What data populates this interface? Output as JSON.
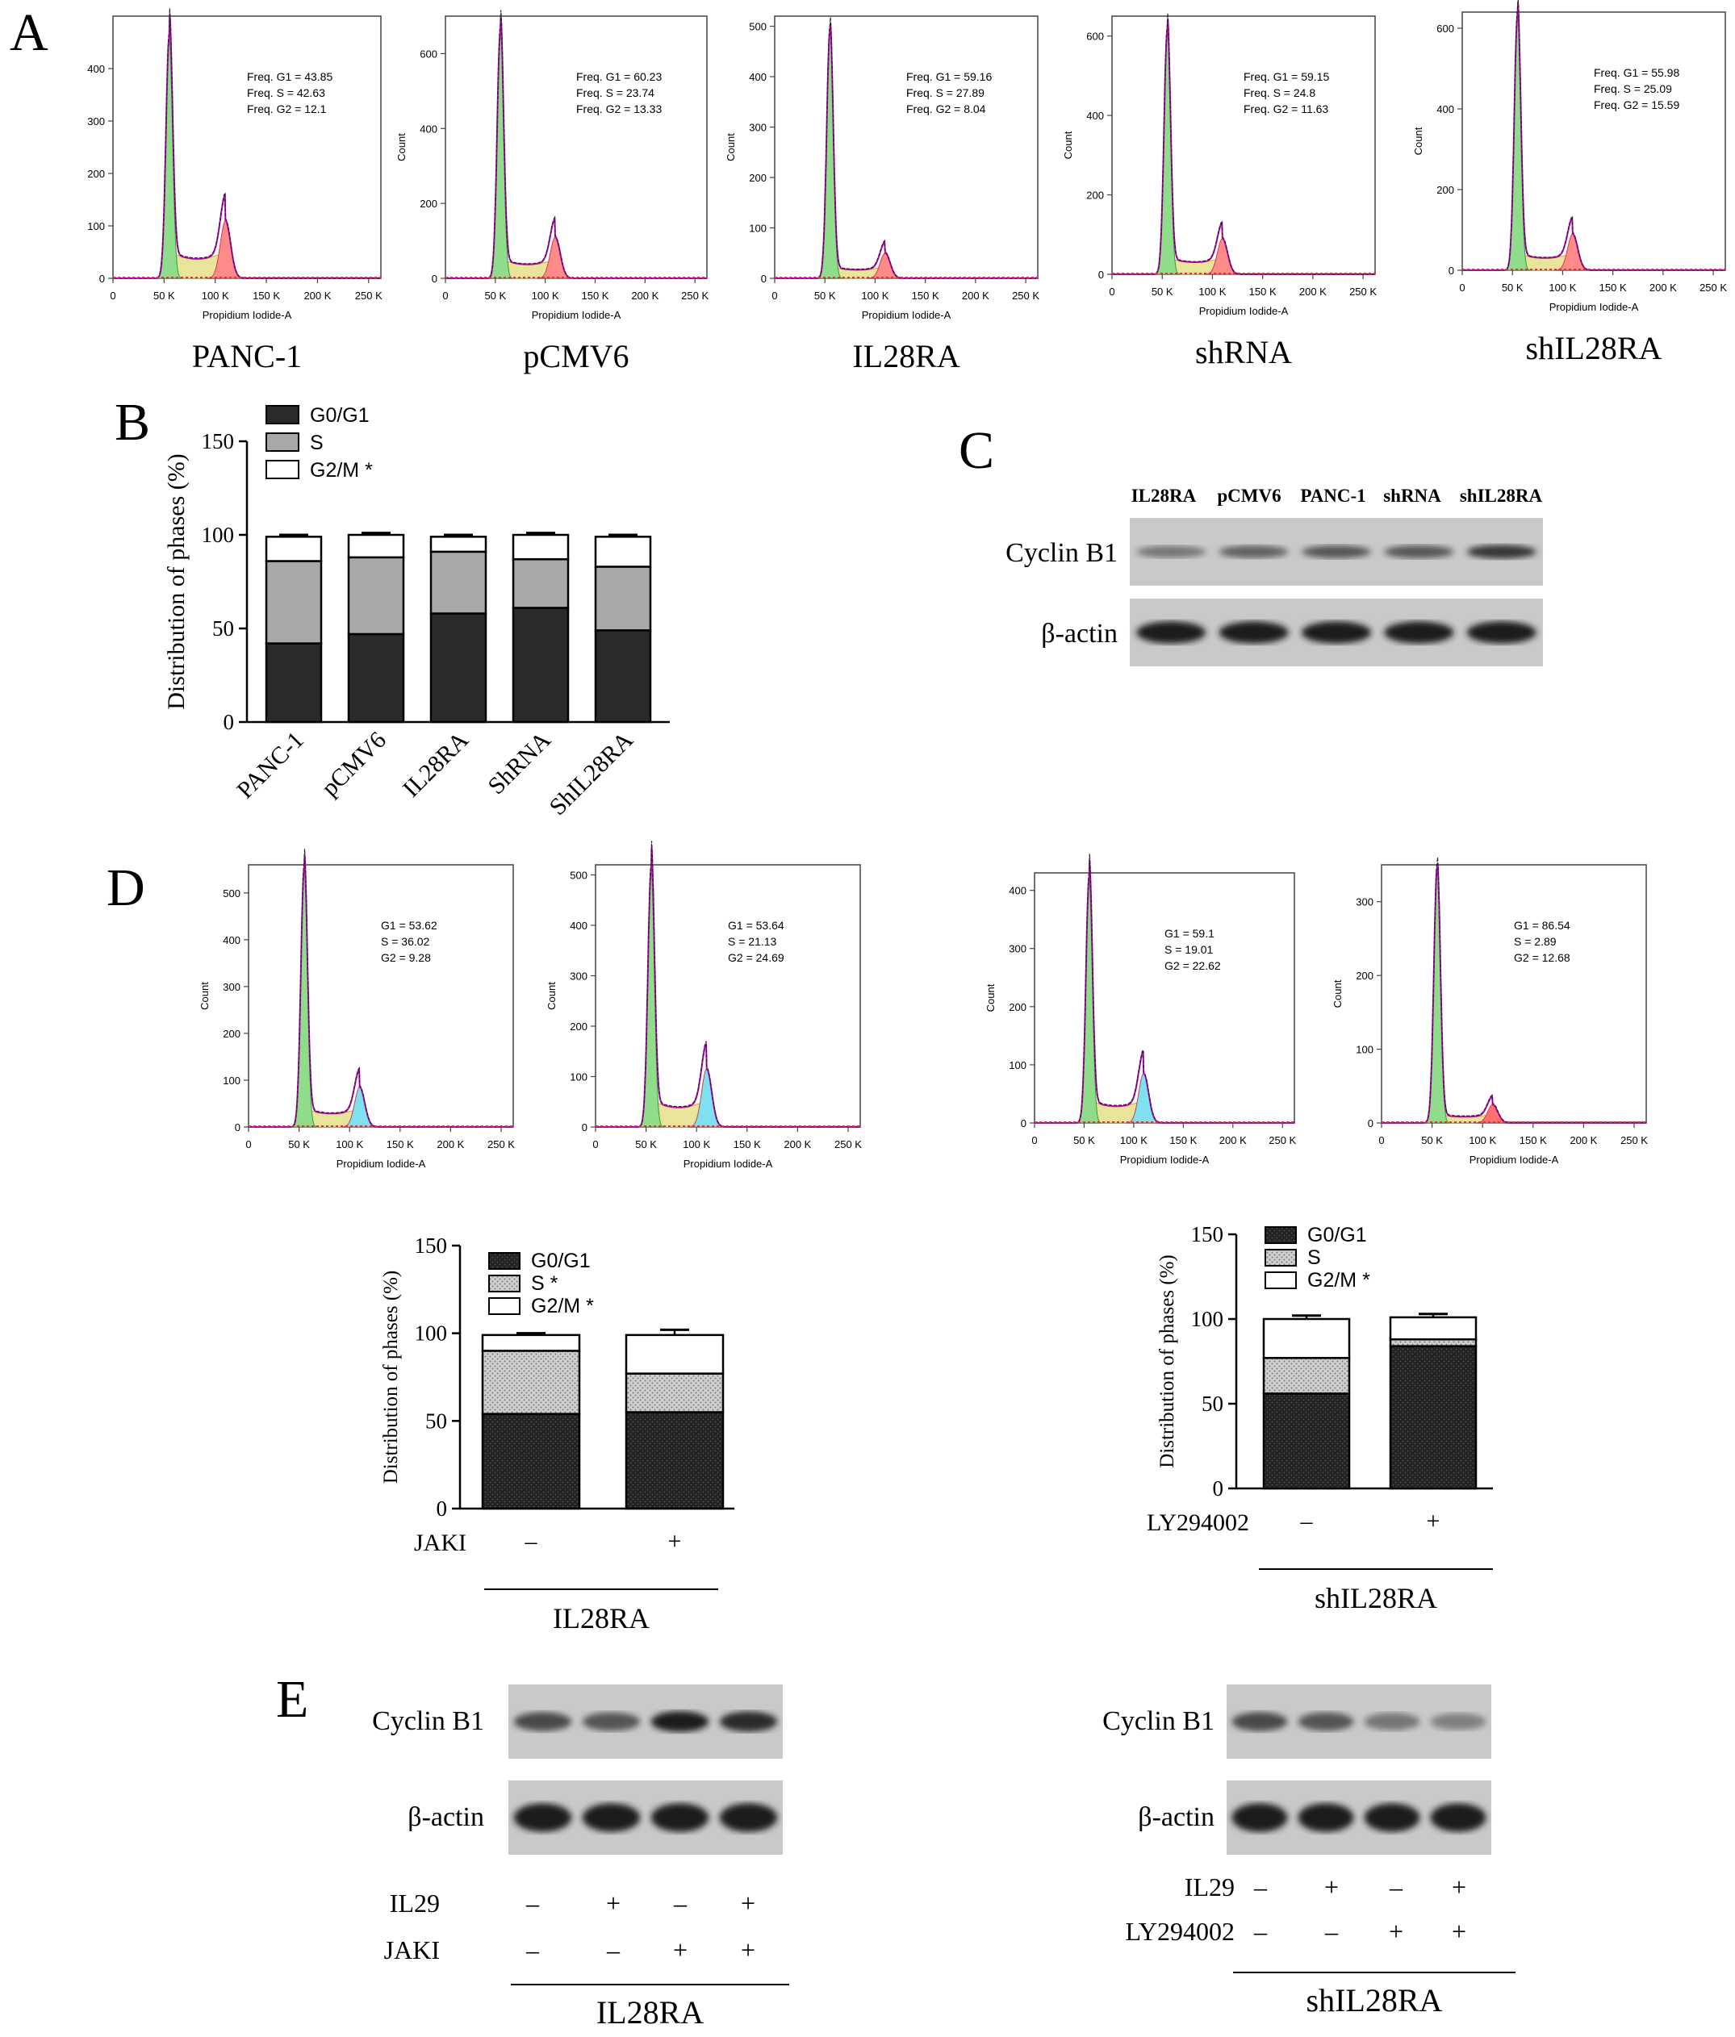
{
  "panel_letters": [
    "A",
    "B",
    "C",
    "D",
    "E"
  ],
  "panel_a": {
    "x_label": "Propidium Iodide-A",
    "y_label": "Count",
    "x_ticks": [
      "0",
      "50 K",
      "100 K",
      "150 K",
      "200 K",
      "250 K"
    ],
    "histograms": [
      {
        "caption": "PANC-1",
        "ymax": 500,
        "y_ticks": [
          "0",
          "100",
          "200",
          "300",
          "400"
        ],
        "peak": 460,
        "g2": 110,
        "show_count": false,
        "stats": [
          "Freq. G1 = 43.85",
          "Freq. S = 42.63",
          "Freq. G2 = 12.1"
        ]
      },
      {
        "caption": "pCMV6",
        "ymax": 700,
        "y_ticks": [
          "0",
          "200",
          "400",
          "600"
        ],
        "peak": 660,
        "g2": 110,
        "show_count": true,
        "stats": [
          "Freq. G1 = 60.23",
          "Freq. S = 23.74",
          "Freq. G2 = 13.33"
        ]
      },
      {
        "caption": "IL28RA",
        "ymax": 520,
        "y_ticks": [
          "0",
          "100",
          "200",
          "300",
          "400",
          "500"
        ],
        "peak": 490,
        "g2": 50,
        "show_count": true,
        "stats": [
          "Freq. G1 = 59.16",
          "Freq. S = 27.89",
          "Freq. G2 = 8.04"
        ]
      },
      {
        "caption": "shRNA",
        "ymax": 650,
        "y_ticks": [
          "0",
          "200",
          "400",
          "600"
        ],
        "peak": 610,
        "g2": 90,
        "show_count": true,
        "stats": [
          "Freq. G1 = 59.15",
          "Freq. S = 24.8",
          "Freq. G2 = 11.63"
        ]
      },
      {
        "caption": "shIL28RA",
        "ymax": 640,
        "y_ticks": [
          "0",
          "200",
          "400",
          "600"
        ],
        "peak": 630,
        "g2": 90,
        "show_count": true,
        "stats": [
          "Freq. G1 = 55.98",
          "Freq. S = 25.09",
          "Freq. G2 = 15.59"
        ]
      }
    ]
  },
  "panel_d_histograms": {
    "x_label": "Propidium Iodide-A",
    "y_label": "Count",
    "x_ticks": [
      "0",
      "50 K",
      "100 K",
      "150 K",
      "200 K",
      "250 K"
    ],
    "histograms": [
      {
        "ymax": 560,
        "y_ticks": [
          "0",
          "100",
          "200",
          "300",
          "400",
          "500"
        ],
        "peak": 550,
        "g2": 85,
        "g2color": "#7fe0f0",
        "stats": [
          "G1 = 53.62",
          "S = 36.02",
          "G2 = 9.28"
        ]
      },
      {
        "ymax": 520,
        "y_ticks": [
          "0",
          "100",
          "200",
          "300",
          "400",
          "500"
        ],
        "peak": 510,
        "g2": 115,
        "g2color": "#7fe0f0",
        "stats": [
          "G1 = 53.64",
          "S = 21.13",
          "G2 = 24.69"
        ]
      },
      {
        "ymax": 430,
        "y_ticks": [
          "0",
          "100",
          "200",
          "300",
          "400"
        ],
        "peak": 420,
        "g2": 85,
        "g2color": "#7fe0f0",
        "stats": [
          "G1 = 59.1",
          "S = 19.01",
          "G2 = 22.62"
        ]
      },
      {
        "ymax": 350,
        "y_ticks": [
          "0",
          "100",
          "200",
          "300"
        ],
        "peak": 345,
        "g2": 25,
        "g2color": "#ff7070",
        "stats": [
          "G1 = 86.54",
          "S = 2.89",
          "G2 = 12.68"
        ]
      }
    ]
  },
  "chart_data": [
    {
      "type": "bar",
      "stacked": true,
      "panel": "B",
      "categories": [
        "PANC-1",
        "pCMV6",
        "IL28RA",
        "ShRNA",
        "ShIL28RA"
      ],
      "series": [
        {
          "name": "G0/G1",
          "values": [
            42,
            47,
            58,
            61,
            49
          ],
          "errors": [
            0,
            3,
            3,
            1,
            3
          ],
          "color": "#2a2a2a"
        },
        {
          "name": "S",
          "values": [
            44,
            41,
            33,
            26,
            34
          ],
          "errors": [
            1,
            2,
            3,
            1,
            3
          ],
          "color": "#a8a8a8"
        },
        {
          "name": "G2/M",
          "values": [
            13,
            12,
            8,
            13,
            16
          ],
          "errors": [
            1,
            1,
            1,
            1,
            1
          ],
          "color": "#ffffff"
        }
      ],
      "legend": [
        "G0/G1",
        "S",
        "G2/M *"
      ],
      "ylabel": "Distribution of phases (%)",
      "y_ticks": [
        "0",
        "50",
        "100",
        "150"
      ],
      "ylim": [
        0,
        150
      ]
    },
    {
      "type": "bar",
      "stacked": true,
      "panel": "D-left",
      "categories": [
        "–",
        "+"
      ],
      "series": [
        {
          "name": "G0/G1",
          "values": [
            54,
            55
          ],
          "errors": [
            1,
            2
          ],
          "color": "#2a2a2a"
        },
        {
          "name": "S",
          "values": [
            36,
            22
          ],
          "errors": [
            1,
            2
          ],
          "color": "#b5b5b5"
        },
        {
          "name": "G2/M",
          "values": [
            9,
            22
          ],
          "errors": [
            1,
            3
          ],
          "color": "#ffffff"
        }
      ],
      "legend": [
        "G0/G1",
        "S *",
        "G2/M *"
      ],
      "ylabel": "Distribution of phases (%)",
      "y_ticks": [
        "0",
        "50",
        "100",
        "150"
      ],
      "ylim": [
        0,
        150
      ],
      "treatment_label": "JAKI",
      "group_label": "IL28RA"
    },
    {
      "type": "bar",
      "stacked": true,
      "panel": "D-right",
      "categories": [
        "–",
        "+"
      ],
      "series": [
        {
          "name": "G0/G1",
          "values": [
            56,
            84
          ],
          "errors": [
            2,
            3
          ],
          "color": "#2a2a2a"
        },
        {
          "name": "S",
          "values": [
            21,
            4
          ],
          "errors": [
            2,
            3
          ],
          "color": "#b5b5b5"
        },
        {
          "name": "G2/M",
          "values": [
            23,
            13
          ],
          "errors": [
            2,
            2
          ],
          "color": "#ffffff"
        }
      ],
      "legend": [
        "G0/G1",
        "S",
        "G2/M *"
      ],
      "ylabel": "Distribution of phases (%)",
      "y_ticks": [
        "0",
        "50",
        "100",
        "150"
      ],
      "ylim": [
        0,
        150
      ],
      "treatment_label": "LY294002",
      "group_label": "shIL28RA"
    }
  ],
  "panel_c": {
    "lane_labels": [
      "IL28RA",
      "pCMV6",
      "PANC-1",
      "shRNA",
      "shIL28RA"
    ],
    "rows": [
      {
        "label": "Cyclin B1",
        "band_intensity": [
          0.55,
          0.65,
          0.7,
          0.7,
          0.85
        ]
      },
      {
        "label": "β-actin",
        "band_intensity": [
          0.95,
          0.95,
          0.95,
          0.95,
          0.95
        ]
      }
    ]
  },
  "panel_e": {
    "left": {
      "rows": [
        {
          "label": "Cyclin B1",
          "band_intensity": [
            0.75,
            0.7,
            0.95,
            0.9
          ]
        },
        {
          "label": "β-actin",
          "band_intensity": [
            0.95,
            0.95,
            0.97,
            0.97
          ]
        }
      ],
      "treatments": [
        {
          "label": "IL29",
          "signs": [
            "–",
            "+",
            "–",
            "+"
          ]
        },
        {
          "label": "JAKI",
          "signs": [
            "–",
            "–",
            "+",
            "+"
          ]
        }
      ],
      "group_label": "IL28RA"
    },
    "right": {
      "rows": [
        {
          "label": "Cyclin B1",
          "band_intensity": [
            0.75,
            0.7,
            0.55,
            0.5
          ]
        },
        {
          "label": "β-actin",
          "band_intensity": [
            0.97,
            0.97,
            0.95,
            0.95
          ]
        }
      ],
      "treatments": [
        {
          "label": "IL29",
          "signs": [
            "–",
            "+",
            "–",
            "+"
          ]
        },
        {
          "label": "LY294002",
          "signs": [
            "–",
            "–",
            "+",
            "+"
          ]
        }
      ],
      "group_label": "shIL28RA"
    }
  }
}
